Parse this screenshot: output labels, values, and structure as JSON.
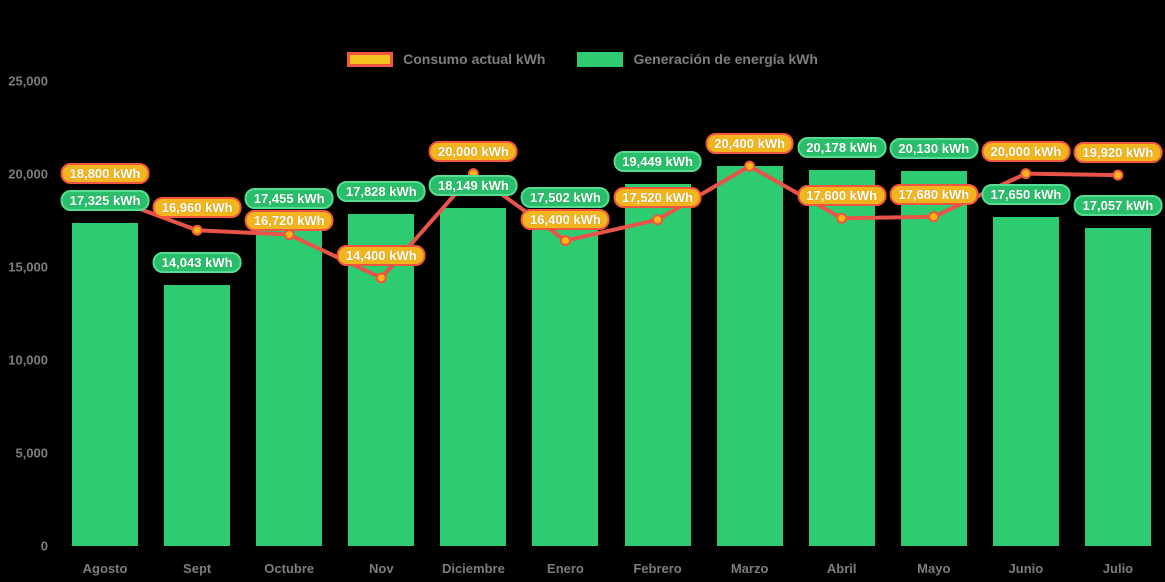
{
  "legend": {
    "consumo_label": "Consumo actual kWh",
    "generacion_label": "Generación de energía kWh"
  },
  "colors": {
    "background": "#000000",
    "bar_green": "#2ecc71",
    "line_red": "#e8544a",
    "marker_fill": "#fcb715",
    "marker_stroke": "#f25540",
    "generation_pill_bg": "#29bf6a",
    "generation_pill_border": "#56dc92",
    "consumption_pill_bg": "#f2b51d",
    "consumption_pill_border": "#f25540",
    "axis_text": "#7d7d7d"
  },
  "chart_data": {
    "type": "bar",
    "subtype": "combo-bar-line",
    "title": "",
    "categories": [
      "Agosto",
      "Sept",
      "Octubre",
      "Nov",
      "Diciembre",
      "Enero",
      "Febrero",
      "Marzo",
      "Abril",
      "Mayo",
      "Junio",
      "Julio"
    ],
    "series": [
      {
        "name": "Consumo actual kWh",
        "type": "line",
        "color": "#e8544a",
        "values": [
          18800,
          16960,
          16720,
          14400,
          20000,
          16400,
          17520,
          20400,
          17600,
          17680,
          20000,
          19920
        ]
      },
      {
        "name": "Generación de energía kWh",
        "type": "bar",
        "color": "#2ecc71",
        "values": [
          17325,
          14043,
          17455,
          17828,
          18149,
          17502,
          19449,
          20400,
          20178,
          20130,
          17650,
          17057
        ]
      }
    ],
    "data_labels": {
      "consumption": [
        "18,800 kWh",
        "16,960 kWh",
        "16,720 kWh",
        "14,400 kWh",
        "20,000 kWh",
        "16,400 kWh",
        "17,520 kWh",
        "20,400 kWh",
        "17,600 kWh",
        "17,680 kWh",
        "20,000 kWh",
        "19,920 kWh"
      ],
      "generation": [
        "17,325 kWh",
        "14,043 kWh",
        "17,455 kWh",
        "17,828 kWh",
        "18,149 kWh",
        "17,502 kWh",
        "19,449 kWh",
        null,
        "20,178 kWh",
        "20,130 kWh",
        "17,650 kWh",
        "17,057 kWh"
      ]
    },
    "yticks": [
      {
        "label": "25,000",
        "value": 25000
      },
      {
        "label": "20,000",
        "value": 20000
      },
      {
        "label": "15,000",
        "value": 15000
      },
      {
        "label": "10,000",
        "value": 10000
      },
      {
        "label": "5,000",
        "value": 5000
      },
      {
        "label": "0",
        "value": 0
      }
    ],
    "xlabel": "",
    "ylabel": "",
    "ylim": [
      0,
      25000
    ],
    "grid": false,
    "legend_position": "top"
  }
}
